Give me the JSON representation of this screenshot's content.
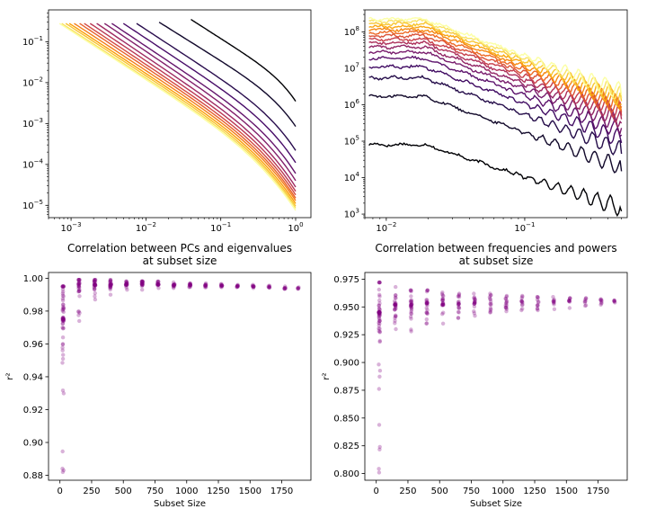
{
  "chart_data": [
    {
      "type": "line",
      "title": "",
      "xlabel": "",
      "ylabel": "",
      "xscale": "log",
      "yscale": "log",
      "xlim": [
        0.0005,
        1.6
      ],
      "ylim": [
        5e-06,
        0.6
      ],
      "xticks": [
        {
          "value": 0.001,
          "base": "10",
          "exp": "−3"
        },
        {
          "value": 0.01,
          "base": "10",
          "exp": "−2"
        },
        {
          "value": 0.1,
          "base": "10",
          "exp": "−1"
        },
        {
          "value": 1,
          "base": "10",
          "exp": "0"
        }
      ],
      "yticks": [
        {
          "value": 1e-05,
          "base": "10",
          "exp": "−5"
        },
        {
          "value": 0.0001,
          "base": "10",
          "exp": "−4"
        },
        {
          "value": 0.001,
          "base": "10",
          "exp": "−3"
        },
        {
          "value": 0.01,
          "base": "10",
          "exp": "−2"
        },
        {
          "value": 0.1,
          "base": "10",
          "exp": "−1"
        }
      ],
      "colors": [
        "#000004",
        "#1b0c41",
        "#4a0c6b",
        "#781c6d",
        "#a52c60",
        "#cf4446",
        "#ed6925",
        "#fb9b06",
        "#f7d13d",
        "#fcffa4"
      ],
      "series": [
        {
          "start": 0.04,
          "startValue": 0.35,
          "end": 1.0,
          "endValue": 0.0035
        },
        {
          "start": 0.015,
          "startValue": 0.3,
          "end": 1.0,
          "endValue": 0.00085
        },
        {
          "start": 0.0075,
          "startValue": 0.28,
          "end": 1.0,
          "endValue": 0.00022
        },
        {
          "start": 0.005,
          "startValue": 0.28,
          "end": 1.0,
          "endValue": 0.00011
        },
        {
          "start": 0.0035,
          "startValue": 0.28,
          "end": 1.0,
          "endValue": 6e-05
        },
        {
          "start": 0.0028,
          "startValue": 0.28,
          "end": 1.0,
          "endValue": 4e-05
        },
        {
          "start": 0.0022,
          "startValue": 0.28,
          "end": 1.0,
          "endValue": 2.8e-05
        },
        {
          "start": 0.0018,
          "startValue": 0.28,
          "end": 1.0,
          "endValue": 2.2e-05
        },
        {
          "start": 0.0015,
          "startValue": 0.28,
          "end": 1.0,
          "endValue": 1.8e-05
        },
        {
          "start": 0.0013,
          "startValue": 0.28,
          "end": 1.0,
          "endValue": 1.5e-05
        },
        {
          "start": 0.0011,
          "startValue": 0.28,
          "end": 1.0,
          "endValue": 1.3e-05
        },
        {
          "start": 0.00095,
          "startValue": 0.28,
          "end": 1.0,
          "endValue": 1.1e-05
        },
        {
          "start": 0.00085,
          "startValue": 0.28,
          "end": 1.0,
          "endValue": 9.5e-06
        },
        {
          "start": 0.00075,
          "startValue": 0.28,
          "end": 1.0,
          "endValue": 8.5e-06
        },
        {
          "start": 0.0007,
          "startValue": 0.28,
          "end": 1.0,
          "endValue": 7.5e-06
        }
      ]
    },
    {
      "type": "line",
      "title": "",
      "xlabel": "",
      "ylabel": "",
      "xscale": "log",
      "yscale": "log",
      "xlim": [
        0.007,
        0.55
      ],
      "ylim": [
        800,
        400000000
      ],
      "xticks": [
        {
          "value": 0.01,
          "base": "10",
          "exp": "−2"
        },
        {
          "value": 0.1,
          "base": "10",
          "exp": "−1"
        }
      ],
      "yticks": [
        {
          "value": 1000,
          "base": "10",
          "exp": "3"
        },
        {
          "value": 10000,
          "base": "10",
          "exp": "4"
        },
        {
          "value": 100000,
          "base": "10",
          "exp": "5"
        },
        {
          "value": 1000000,
          "base": "10",
          "exp": "6"
        },
        {
          "value": 10000000,
          "base": "10",
          "exp": "7"
        },
        {
          "value": 100000000,
          "base": "10",
          "exp": "8"
        }
      ],
      "colors": [
        "#000004",
        "#1b0c41",
        "#4a0c6b",
        "#781c6d",
        "#a52c60",
        "#cf4446",
        "#ed6925",
        "#fb9b06",
        "#f7d13d",
        "#fcffa4"
      ],
      "series": [
        {
          "level": 80000,
          "endLevel": 1200
        },
        {
          "level": 1700000,
          "endLevel": 15000
        },
        {
          "level": 5500000,
          "endLevel": 45000
        },
        {
          "level": 11000000,
          "endLevel": 90000
        },
        {
          "level": 19000000,
          "endLevel": 150000
        },
        {
          "level": 28000000,
          "endLevel": 230000
        },
        {
          "level": 38000000,
          "endLevel": 310000
        },
        {
          "level": 50000000,
          "endLevel": 400000
        },
        {
          "level": 63000000,
          "endLevel": 500000
        },
        {
          "level": 78000000,
          "endLevel": 620000
        },
        {
          "level": 95000000,
          "endLevel": 750000
        },
        {
          "level": 115000000,
          "endLevel": 900000
        },
        {
          "level": 140000000,
          "endLevel": 1050000
        },
        {
          "level": 165000000,
          "endLevel": 1250000
        },
        {
          "level": 195000000,
          "endLevel": 1500000
        },
        {
          "level": 225000000,
          "endLevel": 1800000
        }
      ]
    },
    {
      "type": "scatter",
      "title": "Correlation between PCs and eigenvalues\nat subset size",
      "title_lines": [
        "Correlation between PCs and eigenvalues",
        "at subset size"
      ],
      "xlabel": "Subset Size",
      "ylabel": "r²",
      "xlim": [
        -90,
        1980
      ],
      "ylim": [
        0.877,
        1.0035
      ],
      "xticks": [
        0,
        250,
        500,
        750,
        1000,
        1250,
        1500,
        1750
      ],
      "yticks": [
        0.88,
        0.9,
        0.92,
        0.94,
        0.96,
        0.98,
        1.0
      ],
      "yticklabels": [
        "0.88",
        "0.90",
        "0.92",
        "0.94",
        "0.96",
        "0.98",
        "1.00"
      ],
      "color": "#800080",
      "groups": [
        {
          "x": 25,
          "min": 0.882,
          "max": 0.995,
          "center": 0.975,
          "n": 60
        },
        {
          "x": 150,
          "min": 0.974,
          "max": 0.999,
          "center": 0.995,
          "n": 30
        },
        {
          "x": 275,
          "min": 0.987,
          "max": 0.999,
          "center": 0.996,
          "n": 30
        },
        {
          "x": 400,
          "min": 0.99,
          "max": 0.999,
          "center": 0.996,
          "n": 25
        },
        {
          "x": 525,
          "min": 0.993,
          "max": 0.998,
          "center": 0.996,
          "n": 20
        },
        {
          "x": 650,
          "min": 0.993,
          "max": 0.998,
          "center": 0.9965,
          "n": 20
        },
        {
          "x": 775,
          "min": 0.994,
          "max": 0.998,
          "center": 0.9962,
          "n": 18
        },
        {
          "x": 900,
          "min": 0.994,
          "max": 0.9975,
          "center": 0.996,
          "n": 15
        },
        {
          "x": 1025,
          "min": 0.9945,
          "max": 0.997,
          "center": 0.9958,
          "n": 15
        },
        {
          "x": 1150,
          "min": 0.9945,
          "max": 0.997,
          "center": 0.9957,
          "n": 12
        },
        {
          "x": 1275,
          "min": 0.9945,
          "max": 0.9965,
          "center": 0.9955,
          "n": 12
        },
        {
          "x": 1400,
          "min": 0.9945,
          "max": 0.996,
          "center": 0.9953,
          "n": 10
        },
        {
          "x": 1525,
          "min": 0.994,
          "max": 0.996,
          "center": 0.9948,
          "n": 10
        },
        {
          "x": 1650,
          "min": 0.9942,
          "max": 0.9955,
          "center": 0.9945,
          "n": 8
        },
        {
          "x": 1775,
          "min": 0.9935,
          "max": 0.995,
          "center": 0.9942,
          "n": 8
        },
        {
          "x": 1880,
          "min": 0.9935,
          "max": 0.9945,
          "center": 0.994,
          "n": 6
        }
      ]
    },
    {
      "type": "scatter",
      "title": "Correlation between frequencies and powers\nat subset size",
      "title_lines": [
        "Correlation between frequencies and powers",
        "at subset size"
      ],
      "xlabel": "Subset Size",
      "ylabel": "r²",
      "xlim": [
        -90,
        1980
      ],
      "ylim": [
        0.794,
        0.981
      ],
      "xticks": [
        0,
        250,
        500,
        750,
        1000,
        1250,
        1500,
        1750
      ],
      "yticks": [
        0.8,
        0.825,
        0.85,
        0.875,
        0.9,
        0.925,
        0.95,
        0.975
      ],
      "yticklabels": [
        "0.800",
        "0.825",
        "0.850",
        "0.875",
        "0.900",
        "0.925",
        "0.950",
        "0.975"
      ],
      "color": "#800080",
      "groups": [
        {
          "x": 25,
          "min": 0.801,
          "max": 0.972,
          "center": 0.945,
          "n": 60
        },
        {
          "x": 150,
          "min": 0.93,
          "max": 0.968,
          "center": 0.952,
          "n": 30
        },
        {
          "x": 275,
          "min": 0.928,
          "max": 0.965,
          "center": 0.952,
          "n": 30
        },
        {
          "x": 400,
          "min": 0.935,
          "max": 0.965,
          "center": 0.953,
          "n": 25
        },
        {
          "x": 525,
          "min": 0.935,
          "max": 0.963,
          "center": 0.952,
          "n": 22
        },
        {
          "x": 650,
          "min": 0.94,
          "max": 0.962,
          "center": 0.953,
          "n": 20
        },
        {
          "x": 775,
          "min": 0.942,
          "max": 0.962,
          "center": 0.953,
          "n": 18
        },
        {
          "x": 900,
          "min": 0.945,
          "max": 0.962,
          "center": 0.954,
          "n": 15
        },
        {
          "x": 1025,
          "min": 0.946,
          "max": 0.96,
          "center": 0.954,
          "n": 15
        },
        {
          "x": 1150,
          "min": 0.947,
          "max": 0.96,
          "center": 0.954,
          "n": 12
        },
        {
          "x": 1275,
          "min": 0.947,
          "max": 0.959,
          "center": 0.954,
          "n": 12
        },
        {
          "x": 1400,
          "min": 0.948,
          "max": 0.959,
          "center": 0.955,
          "n": 10
        },
        {
          "x": 1525,
          "min": 0.949,
          "max": 0.958,
          "center": 0.955,
          "n": 10
        },
        {
          "x": 1650,
          "min": 0.951,
          "max": 0.958,
          "center": 0.955,
          "n": 8
        },
        {
          "x": 1775,
          "min": 0.952,
          "max": 0.957,
          "center": 0.955,
          "n": 8
        },
        {
          "x": 1880,
          "min": 0.954,
          "max": 0.956,
          "center": 0.955,
          "n": 6
        }
      ]
    }
  ]
}
